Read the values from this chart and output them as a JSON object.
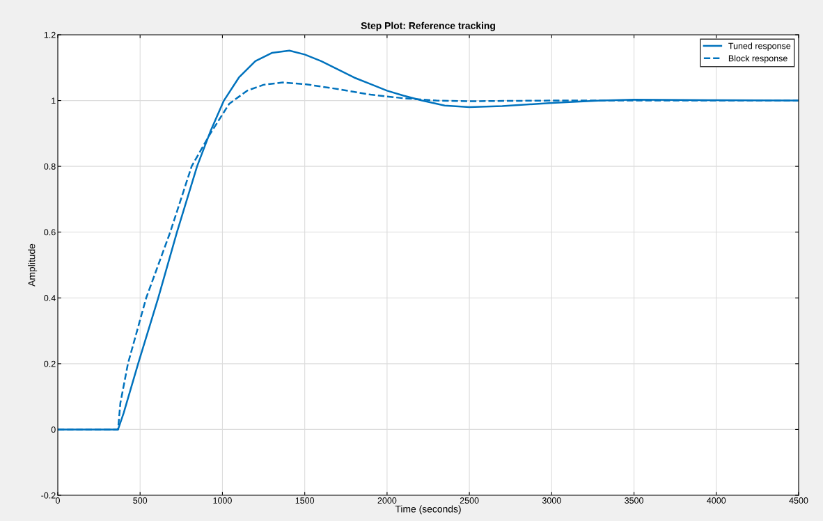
{
  "chart_data": {
    "type": "line",
    "title": "Step Plot: Reference tracking",
    "xlabel": "Time (seconds)",
    "ylabel": "Amplitude",
    "xlim": [
      0,
      4500
    ],
    "ylim": [
      -0.2,
      1.2
    ],
    "xticks": [
      0,
      500,
      1000,
      1500,
      2000,
      2500,
      3000,
      3500,
      4000,
      4500
    ],
    "yticks": [
      -0.2,
      0,
      0.2,
      0.4,
      0.6,
      0.8,
      1,
      1.2
    ],
    "grid": true,
    "legend": "top right",
    "series": [
      {
        "name": "Tuned response",
        "color": "#0072bd",
        "line_style": "solid",
        "x": [
          0,
          366,
          400,
          488,
          610,
          724,
          846,
          930,
          1009,
          1100,
          1200,
          1300,
          1407,
          1500,
          1600,
          1700,
          1800,
          1900,
          2000,
          2100,
          2213,
          2350,
          2500,
          2700,
          3000,
          3300,
          3500,
          4000,
          4500
        ],
        "values": [
          0,
          0,
          0.05,
          0.2,
          0.4,
          0.6,
          0.8,
          0.91,
          1.0,
          1.07,
          1.12,
          1.145,
          1.152,
          1.14,
          1.12,
          1.095,
          1.07,
          1.05,
          1.03,
          1.015,
          1.0,
          0.985,
          0.98,
          0.983,
          0.993,
          1.0,
          1.003,
          1.001,
          1.0
        ]
      },
      {
        "name": "Block response",
        "color": "#0072bd",
        "line_style": "dashed",
        "x": [
          0,
          366,
          380,
          426,
          537,
          683,
          813,
          927,
          1041,
          1150,
          1250,
          1367,
          1500,
          1700,
          1900,
          2100,
          2300,
          2500,
          3000,
          3500,
          4000,
          4500
        ],
        "values": [
          0,
          0,
          0.08,
          0.2,
          0.4,
          0.6,
          0.8,
          0.9,
          0.99,
          1.03,
          1.048,
          1.055,
          1.05,
          1.035,
          1.018,
          1.007,
          1.0,
          0.998,
          1.0,
          1.0,
          1.0,
          1.0
        ]
      }
    ]
  }
}
